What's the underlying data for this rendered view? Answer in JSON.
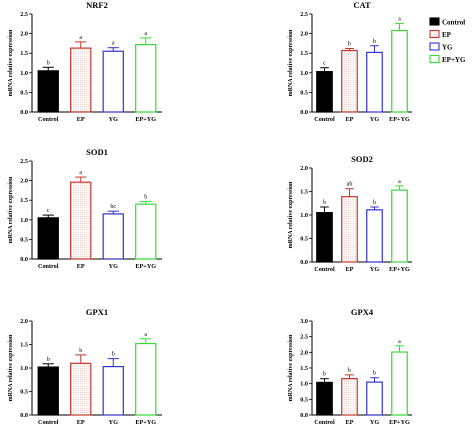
{
  "legend": {
    "items": [
      {
        "label": "Control",
        "color": "#000000",
        "style": "filled"
      },
      {
        "label": "EP",
        "color": "#c0392b",
        "style": "dotted"
      },
      {
        "label": "YG",
        "color": "#2f33c8",
        "style": "hollow"
      },
      {
        "label": "EP+YG",
        "color": "#33dd33",
        "style": "hollow"
      }
    ]
  },
  "chart_data": [
    {
      "type": "bar",
      "title": "NRF2",
      "ylabel": "mRNA relative expression",
      "categories": [
        "Control",
        "EP",
        "YG",
        "EP+YG"
      ],
      "values": [
        1.05,
        1.63,
        1.55,
        1.72
      ],
      "errors": [
        0.09,
        0.16,
        0.09,
        0.17
      ],
      "letters": [
        "b",
        "a",
        "a",
        "a"
      ],
      "ylim": [
        0,
        2.5
      ],
      "yticks": [
        "0.0",
        "0.5",
        "1.0",
        "1.5",
        "2.0",
        "2.5"
      ]
    },
    {
      "type": "bar",
      "title": "CAT",
      "ylabel": "mRNA relative expression",
      "categories": [
        "Control",
        "EP",
        "YG",
        "EP+YG"
      ],
      "values": [
        1.03,
        1.57,
        1.52,
        2.08
      ],
      "errors": [
        0.1,
        0.05,
        0.17,
        0.18
      ],
      "letters": [
        "c",
        "b",
        "b",
        "a"
      ],
      "ylim": [
        0,
        2.5
      ],
      "yticks": [
        "0.0",
        "0.5",
        "1.0",
        "1.5",
        "2.0",
        "2.5"
      ]
    },
    {
      "type": "bar",
      "title": "SOD1",
      "ylabel": "mRNA relative expression",
      "categories": [
        "Control",
        "EP",
        "YG",
        "EP+YG"
      ],
      "values": [
        1.05,
        1.96,
        1.15,
        1.4
      ],
      "errors": [
        0.07,
        0.13,
        0.07,
        0.07
      ],
      "letters": [
        "c",
        "a",
        "bc",
        "b"
      ],
      "ylim": [
        0,
        2.5
      ],
      "yticks": [
        "0.0",
        "0.5",
        "1.0",
        "1.5",
        "2.0",
        "2.5"
      ]
    },
    {
      "type": "bar",
      "title": "SOD2",
      "ylabel": "mRNA relative expression",
      "categories": [
        "Control",
        "EP",
        "YG",
        "EP+YG"
      ],
      "values": [
        1.05,
        1.39,
        1.11,
        1.53
      ],
      "errors": [
        0.12,
        0.17,
        0.06,
        0.09
      ],
      "letters": [
        "b",
        "ab",
        "b",
        "a"
      ],
      "ylim": [
        0,
        2.0
      ],
      "yticks": [
        "0.0",
        "0.5",
        "1.0",
        "1.5",
        "2.0"
      ]
    },
    {
      "type": "bar",
      "title": "GPX1",
      "ylabel": "mRNA relative expression",
      "categories": [
        "Control",
        "EP",
        "YG",
        "EP+YG"
      ],
      "values": [
        1.02,
        1.1,
        1.03,
        1.52
      ],
      "errors": [
        0.07,
        0.18,
        0.17,
        0.1
      ],
      "letters": [
        "b",
        "b",
        "b",
        "a"
      ],
      "ylim": [
        0,
        2.0
      ],
      "yticks": [
        "0.0",
        "0.5",
        "1.0",
        "1.5",
        "2.0"
      ]
    },
    {
      "type": "bar",
      "title": "GPX4",
      "ylabel": "mRNA relative expression",
      "categories": [
        "Control",
        "EP",
        "YG",
        "EP+YG"
      ],
      "values": [
        1.04,
        1.16,
        1.05,
        2.01
      ],
      "errors": [
        0.12,
        0.12,
        0.14,
        0.2
      ],
      "letters": [
        "b",
        "b",
        "b",
        "a"
      ],
      "ylim": [
        0,
        3.0
      ],
      "yticks": [
        "0.0",
        "0.5",
        "1.0",
        "1.5",
        "2.0",
        "2.5",
        "3.0"
      ]
    }
  ]
}
